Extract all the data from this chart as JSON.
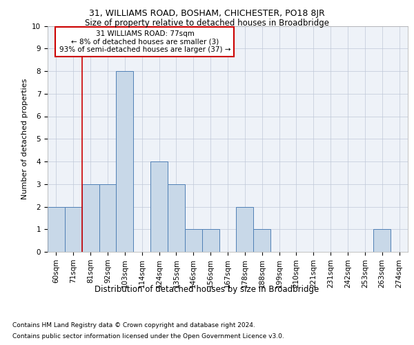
{
  "title1": "31, WILLIAMS ROAD, BOSHAM, CHICHESTER, PO18 8JR",
  "title2": "Size of property relative to detached houses in Broadbridge",
  "xlabel": "Distribution of detached houses by size in Broadbridge",
  "ylabel": "Number of detached properties",
  "categories": [
    "60sqm",
    "71sqm",
    "81sqm",
    "92sqm",
    "103sqm",
    "114sqm",
    "124sqm",
    "135sqm",
    "146sqm",
    "156sqm",
    "167sqm",
    "178sqm",
    "188sqm",
    "199sqm",
    "210sqm",
    "221sqm",
    "231sqm",
    "242sqm",
    "253sqm",
    "263sqm",
    "274sqm"
  ],
  "values": [
    2,
    2,
    3,
    3,
    8,
    0,
    4,
    3,
    1,
    1,
    0,
    2,
    1,
    0,
    0,
    0,
    0,
    0,
    0,
    1,
    0
  ],
  "bar_color": "#c8d8e8",
  "bar_edge_color": "#4f7fb5",
  "grid_color": "#c0c8d8",
  "bg_color": "#eef2f8",
  "annotation_box_color": "#ffffff",
  "annotation_box_edge": "#cc0000",
  "vline_color": "#cc0000",
  "vline_x": 1.5,
  "annotation_text": "31 WILLIAMS ROAD: 77sqm\n← 8% of detached houses are smaller (3)\n93% of semi-detached houses are larger (37) →",
  "footnote1": "Contains HM Land Registry data © Crown copyright and database right 2024.",
  "footnote2": "Contains public sector information licensed under the Open Government Licence v3.0.",
  "ylim": [
    0,
    10
  ],
  "yticks": [
    0,
    1,
    2,
    3,
    4,
    5,
    6,
    7,
    8,
    9,
    10
  ],
  "title1_fontsize": 9,
  "title2_fontsize": 8.5,
  "xlabel_fontsize": 8.5,
  "ylabel_fontsize": 8,
  "tick_fontsize": 7.5,
  "annot_fontsize": 7.5,
  "footnote_fontsize": 6.5
}
